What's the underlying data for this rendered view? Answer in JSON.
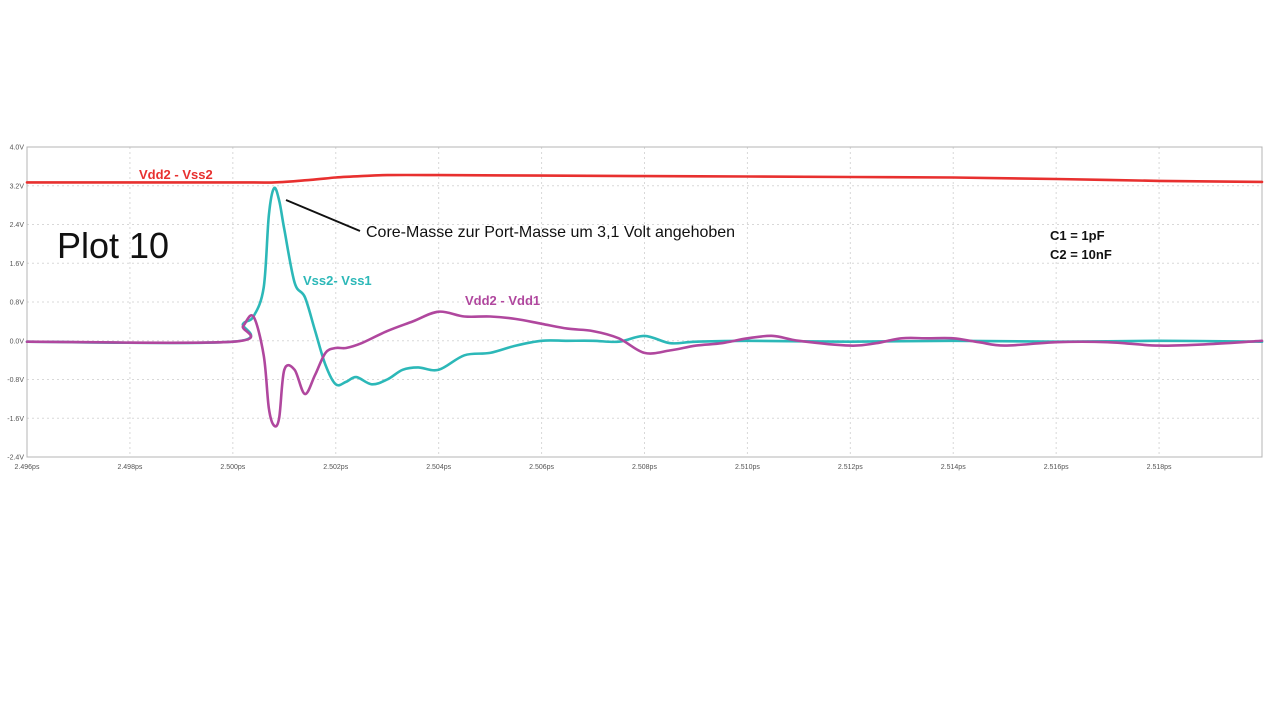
{
  "chart_data": {
    "type": "line",
    "title": "Plot 10",
    "annotation": "Core-Masse zur Port-Masse um 3,1 Volt angehoben",
    "parameters": [
      "C1 = 1pF",
      "C2 = 10nF"
    ],
    "x_ticks": [
      "2.496ps",
      "2.498ps",
      "2.500ps",
      "2.502ps",
      "2.504ps",
      "2.506ps",
      "2.508ps",
      "2.510ps",
      "2.512ps",
      "2.514ps",
      "2.516ps",
      "2.518ps"
    ],
    "y_ticks": [
      "4.0V",
      "3.2V",
      "2.4V",
      "1.6V",
      "0.8V",
      "0.0V",
      "-0.8V",
      "-1.6V",
      "-2.4V"
    ],
    "xlim": [
      2.496,
      2.52
    ],
    "ylim": [
      -2.4,
      4.0
    ],
    "grid": true,
    "series": [
      {
        "name": "Vdd2 - Vss2",
        "color": "#e8302f",
        "x": [
          2.496,
          2.5,
          2.5008,
          2.5015,
          2.502,
          2.5025,
          2.503,
          2.504,
          2.506,
          2.508,
          2.51,
          2.512,
          2.514,
          2.516,
          2.518,
          2.52
        ],
        "y": [
          3.27,
          3.27,
          3.27,
          3.32,
          3.37,
          3.4,
          3.42,
          3.42,
          3.41,
          3.4,
          3.39,
          3.38,
          3.37,
          3.34,
          3.3,
          3.28
        ]
      },
      {
        "name": "Vss2- Vss1",
        "color": "#2cb8b8",
        "x": [
          2.496,
          2.5,
          2.5002,
          2.5004,
          2.5006,
          2.5007,
          2.5008,
          2.5009,
          2.501,
          2.5012,
          2.5014,
          2.5016,
          2.5018,
          2.502,
          2.5022,
          2.5024,
          2.5027,
          2.503,
          2.5033,
          2.5036,
          2.504,
          2.5045,
          2.505,
          2.5055,
          2.506,
          2.5065,
          2.507,
          2.5075,
          2.508,
          2.5085,
          2.509,
          2.51,
          2.512,
          2.514,
          2.516,
          2.518,
          2.52
        ],
        "y": [
          -0.02,
          -0.02,
          0.35,
          0.5,
          1.1,
          2.6,
          3.15,
          2.9,
          2.3,
          1.2,
          0.9,
          0.2,
          -0.5,
          -0.9,
          -0.85,
          -0.75,
          -0.9,
          -0.8,
          -0.6,
          -0.55,
          -0.6,
          -0.3,
          -0.25,
          -0.1,
          0.0,
          0.0,
          0.0,
          -0.02,
          0.1,
          -0.05,
          -0.02,
          0.0,
          -0.02,
          0.0,
          -0.02,
          0.0,
          -0.02
        ]
      },
      {
        "name": "Vdd2 - Vdd1",
        "color": "#b0479e",
        "x": [
          2.496,
          2.5,
          2.5002,
          2.5004,
          2.5006,
          2.5007,
          2.5008,
          2.5009,
          2.501,
          2.5012,
          2.5014,
          2.5016,
          2.5018,
          2.502,
          2.5022,
          2.5025,
          2.503,
          2.5035,
          2.504,
          2.5045,
          2.505,
          2.5055,
          2.506,
          2.5065,
          2.507,
          2.5075,
          2.508,
          2.5085,
          2.509,
          2.5095,
          2.51,
          2.5105,
          2.511,
          2.512,
          2.5125,
          2.513,
          2.5135,
          2.514,
          2.5145,
          2.515,
          2.516,
          2.517,
          2.518,
          2.519,
          2.52
        ],
        "y": [
          -0.02,
          -0.02,
          0.3,
          0.5,
          -0.3,
          -1.4,
          -1.75,
          -1.6,
          -0.6,
          -0.6,
          -1.1,
          -0.7,
          -0.25,
          -0.15,
          -0.15,
          -0.05,
          0.2,
          0.4,
          0.6,
          0.5,
          0.5,
          0.45,
          0.35,
          0.25,
          0.2,
          0.05,
          -0.25,
          -0.2,
          -0.1,
          -0.05,
          0.05,
          0.1,
          0.0,
          -0.1,
          -0.05,
          0.05,
          0.05,
          0.05,
          -0.03,
          -0.1,
          -0.03,
          -0.03,
          -0.1,
          -0.07,
          0.0
        ]
      }
    ]
  }
}
